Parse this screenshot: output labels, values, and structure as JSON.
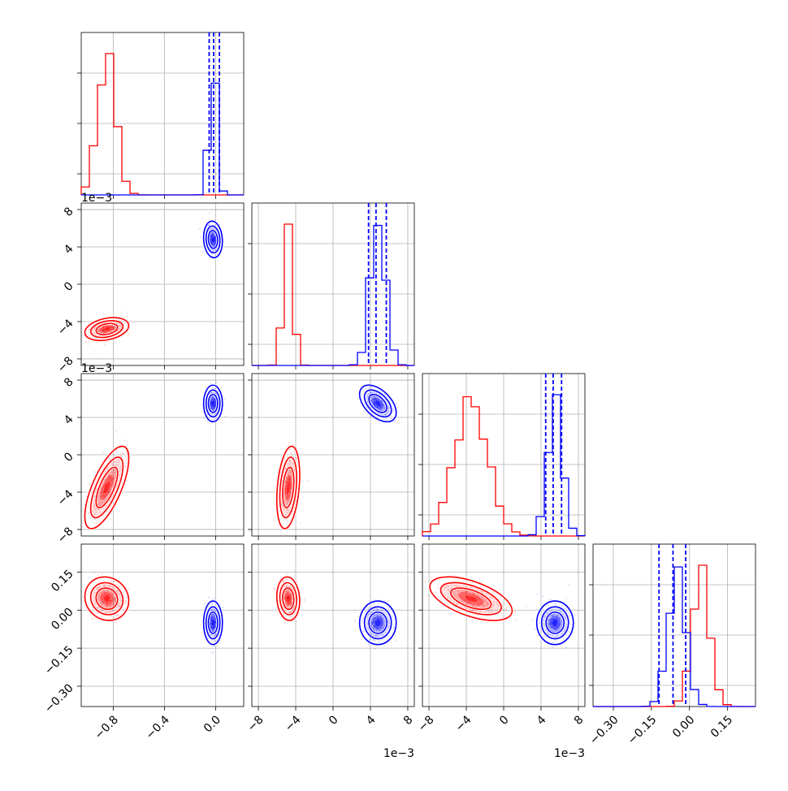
{
  "chart_data": {
    "type": "corner",
    "parameters": 4,
    "series": [
      {
        "name": "",
        "color": "#ff0000",
        "mean": [
          -0.85,
          -0.0048,
          -0.0035,
          0.045
        ],
        "sd": [
          0.07,
          0.0005,
          0.0018,
          0.035
        ],
        "rho": {
          "1-2": 0.3,
          "1-3": 0.7,
          "2-3": 0.3,
          "1-4": -0.1,
          "2-4": -0.1,
          "3-4": -0.55
        }
      },
      {
        "name": "",
        "color": "#0000ff",
        "mean": [
          -0.02,
          0.0048,
          0.0055,
          -0.05
        ],
        "sd": [
          0.03,
          0.0008,
          0.0008,
          0.035
        ],
        "rho": {
          "1-2": -0.1,
          "1-3": 0.0,
          "2-3": -0.5,
          "1-4": 0.0,
          "2-4": 0.0,
          "3-4": 0.0
        }
      }
    ],
    "quantile_lines": [
      [
        -0.05,
        -0.015,
        0.03
      ],
      [
        0.0038,
        0.0046,
        0.0057
      ],
      [
        0.0045,
        0.0053,
        0.0062
      ],
      [
        -0.12,
        -0.065,
        -0.015
      ]
    ],
    "quantile_color": "#0000ff",
    "axes": [
      {
        "lim": [
          -1.05,
          0.22
        ],
        "ticks": [
          -0.8,
          -0.4,
          0.0
        ],
        "tick_labels": [
          "−0.8",
          "−0.4",
          "0.0"
        ]
      },
      {
        "lim": [
          -0.0087,
          0.0087
        ],
        "ticks": [
          -0.008,
          -0.004,
          0,
          0.004,
          0.008
        ],
        "tick_labels": [
          "−8",
          "−4",
          "0",
          "4",
          "8"
        ],
        "offset_label": "1e−3"
      },
      {
        "lim": [
          -0.0087,
          0.0087
        ],
        "ticks": [
          -0.008,
          -0.004,
          0,
          0.004,
          0.008
        ],
        "tick_labels": [
          "−8",
          "−4",
          "0",
          "4",
          "8"
        ],
        "offset_label": "1e−3"
      },
      {
        "lim": [
          -0.38,
          0.26
        ],
        "ticks": [
          -0.3,
          -0.15,
          0.0,
          0.15
        ],
        "tick_labels": [
          "−0.30",
          "−0.15",
          "0.00",
          "0.15"
        ]
      }
    ],
    "xlabels": [
      "",
      "",
      "",
      ""
    ],
    "ylabels": [
      "",
      "",
      "",
      ""
    ],
    "grid": true,
    "legend": "none",
    "title": ""
  }
}
